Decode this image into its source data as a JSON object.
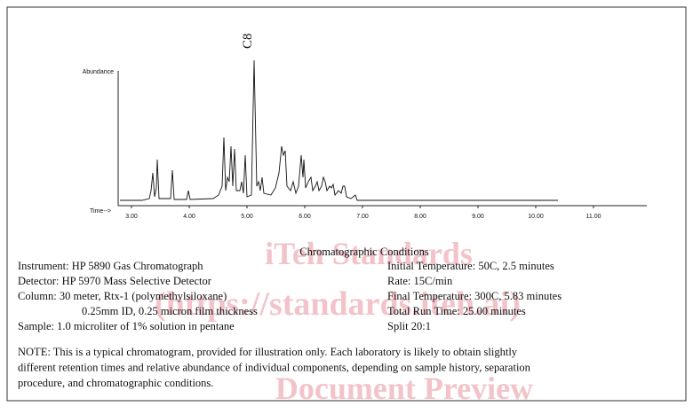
{
  "figure": {
    "peak_label": "C8",
    "y_axis_label": "Abundance",
    "x_axis_label": "Time-->",
    "x_ticks": [
      "3.00",
      "4.00",
      "5.00",
      "6.00",
      "7.00",
      "8.00",
      "9.00",
      "10.00",
      "11.00"
    ]
  },
  "conditions": {
    "title": "Chromatographic Conditions",
    "left": [
      "Instrument:  HP 5890 Gas Chromatograph",
      "Detector:  HP 5970 Mass Selective Detector",
      "Column:   30 meter, Rtx-1 (polymethylsiloxane)",
      "0.25mm ID, 0.25 micron film thickness",
      "Sample: 1.0 microliter of 1% solution in pentane"
    ],
    "right": [
      "Initial Temperature:  50C, 2.5 minutes",
      "Rate: 15C/min",
      "Final Temperature:  300C, 5.83 minutes",
      "Total Run Time:  25.00 minutes",
      "Split  20:1"
    ]
  },
  "note": [
    "NOTE:  This is a typical chromatogram, provided for illustration only.  Each laboratory is likely to obtain slightly",
    "different retention times and relative abundance of individual components, depending on sample history, separation",
    "procedure, and chromatographic conditions."
  ],
  "watermark": [
    "iTeh Standards",
    "(https://standards.iteh.ai)",
    "Document Preview"
  ]
}
